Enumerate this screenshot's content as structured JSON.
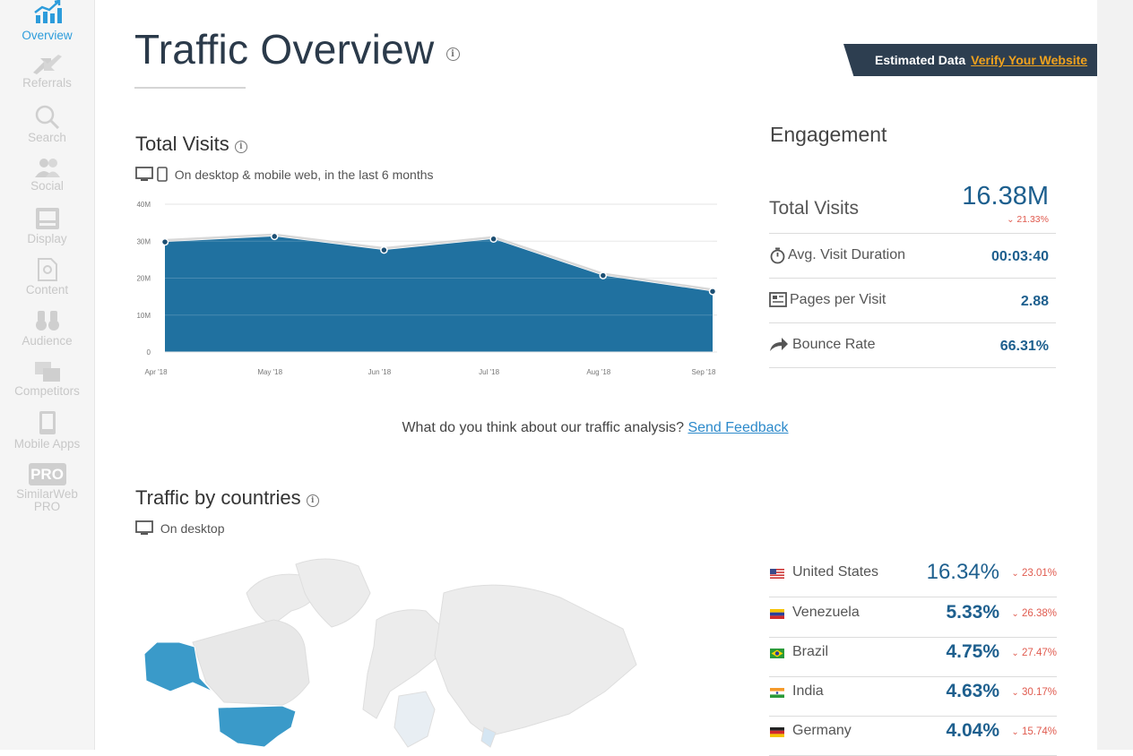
{
  "sidebar": {
    "items": [
      {
        "label": "Overview",
        "icon": "chart-bar-icon"
      },
      {
        "label": "Referrals",
        "icon": "referrals-arrows-icon"
      },
      {
        "label": "Search",
        "icon": "search-icon"
      },
      {
        "label": "Social",
        "icon": "users-icon"
      },
      {
        "label": "Display",
        "icon": "display-icon"
      },
      {
        "label": "Content",
        "icon": "document-icon"
      },
      {
        "label": "Audience",
        "icon": "binoculars-icon"
      },
      {
        "label": "Competitors",
        "icon": "stacked-windows-icon"
      },
      {
        "label": "Mobile Apps",
        "icon": "phone-icon"
      },
      {
        "label": "SimilarWeb PRO",
        "pro_badge": "PRO",
        "icon": "pro-badge-icon"
      }
    ],
    "active_color": "#2d9cdb",
    "inactive_color": "#c8c8c8"
  },
  "header": {
    "title": "Traffic Overview",
    "info": "i"
  },
  "badge": {
    "text": "Estimated Data",
    "link": "Verify Your Website",
    "bg_color": "#2d3e50",
    "link_color": "#f0a21e"
  },
  "visits": {
    "title": "Total Visits",
    "subtitle": "On desktop & mobile web, in the last 6 months"
  },
  "chart_data": {
    "type": "area",
    "categories": [
      "Apr '18",
      "May '18",
      "Jun '18",
      "Jul '18",
      "Aug '18",
      "Sep '18"
    ],
    "values": [
      29.8,
      31.3,
      27.6,
      30.6,
      20.7,
      16.4
    ],
    "y_ticks": [
      "0",
      "10M",
      "20M",
      "30M",
      "40M"
    ],
    "ylim": [
      0,
      40
    ],
    "grid": true,
    "fill_color": "#2071a0"
  },
  "engagement": {
    "title": "Engagement",
    "total_visits_label": "Total Visits",
    "total_visits_value": "16.38M",
    "total_visits_change": "21.33%",
    "rows": [
      {
        "label": "Avg. Visit Duration",
        "value": "00:03:40",
        "icon": "stopwatch-icon"
      },
      {
        "label": "Pages per Visit",
        "value": "2.88",
        "icon": "pages-icon"
      },
      {
        "label": "Bounce Rate",
        "value": "66.31%",
        "icon": "bounce-arrow-icon"
      }
    ]
  },
  "feedback": {
    "question": "What do you think about our traffic analysis?",
    "link": "Send Feedback"
  },
  "countries": {
    "title": "Traffic by countries",
    "subtitle": "On desktop",
    "items": [
      {
        "name": "United States",
        "value": "16.34%",
        "change": "23.01%",
        "flag": "us-flag-icon"
      },
      {
        "name": "Venezuela",
        "value": "5.33%",
        "change": "26.38%",
        "flag": "venezuela-flag-icon"
      },
      {
        "name": "Brazil",
        "value": "4.75%",
        "change": "27.47%",
        "flag": "brazil-flag-icon"
      },
      {
        "name": "India",
        "value": "4.63%",
        "change": "30.17%",
        "flag": "india-flag-icon"
      },
      {
        "name": "Germany",
        "value": "4.04%",
        "change": "15.74%",
        "flag": "germany-flag-icon"
      }
    ],
    "map_highlight": "#3a9ac9"
  }
}
